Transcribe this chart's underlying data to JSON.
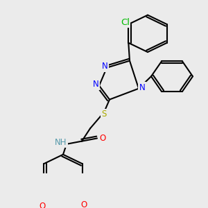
{
  "background_color": "#ebebeb",
  "bond_color": "#000000",
  "bond_width": 1.5,
  "atom_colors": {
    "N": "#0000ff",
    "O": "#ff0000",
    "S": "#aaaa00",
    "Cl": "#00bb00",
    "H": "#5599aa",
    "C": "#000000"
  },
  "font_size": 8.5,
  "figsize": [
    3.0,
    3.0
  ],
  "dpi": 100
}
